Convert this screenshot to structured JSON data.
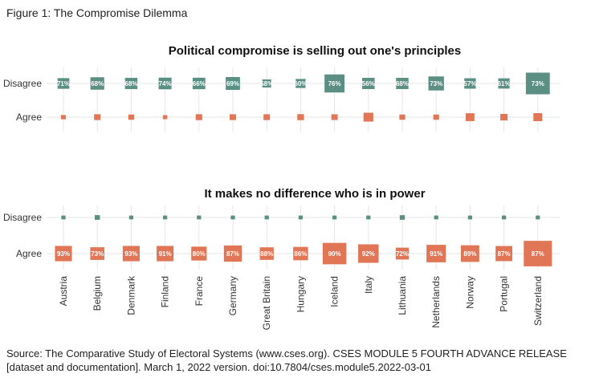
{
  "figure_caption": "Figure 1: The Compromise Dilemma",
  "source_note": "Source: The Comparative Study of Electoral Systems (www.cses.org). CSES MODULE 5 FOURTH ADVANCE RELEASE [dataset and documentation]. March 1, 2022 version. doi:10.7804/cses.module5.2022-03-01",
  "colors": {
    "disagree": "#5b8f84",
    "agree": "#e07656",
    "grid": "#e6e6e6",
    "label_text": "#ffffff"
  },
  "chart_data": [
    {
      "type": "heatmap",
      "title": "Political compromise is selling out one's principles",
      "rows": [
        "Disagree",
        "Agree"
      ],
      "categories": [
        "Austria",
        "Belgium",
        "Denmark",
        "Finland",
        "France",
        "Germany",
        "Great Britain",
        "Hungary",
        "Iceland",
        "Italy",
        "Lithuania",
        "Netherlands",
        "Norway",
        "Portugal",
        "Switzerland"
      ],
      "labeled_row": "Disagree",
      "labels": [
        "71%",
        "68%",
        "68%",
        "74%",
        "66%",
        "69%",
        "58%",
        "60%",
        "76%",
        "56%",
        "68%",
        "73%",
        "57%",
        "61%",
        "73%"
      ],
      "series": [
        {
          "name": "Disagree",
          "values": [
            71,
            68,
            68,
            74,
            66,
            69,
            58,
            60,
            76,
            56,
            68,
            73,
            57,
            61,
            73
          ]
        },
        {
          "name": "Agree",
          "values": [
            29,
            32,
            32,
            26,
            34,
            31,
            42,
            40,
            24,
            44,
            32,
            27,
            43,
            39,
            27
          ]
        }
      ],
      "sample_scale": [
        0.82,
        1.0,
        0.9,
        0.86,
        0.95,
        1.02,
        0.76,
        0.82,
        1.3,
        1.1,
        0.9,
        1.05,
        1.0,
        0.92,
        1.62
      ]
    },
    {
      "type": "heatmap",
      "title": "It makes no difference who is in power",
      "rows": [
        "Disagree",
        "Agree"
      ],
      "categories": [
        "Austria",
        "Belgium",
        "Denmark",
        "Finland",
        "France",
        "Germany",
        "Great Britain",
        "Hungary",
        "Iceland",
        "Italy",
        "Lithuania",
        "Netherlands",
        "Norway",
        "Portugal",
        "Switzerland"
      ],
      "labeled_row": "Agree",
      "labels": [
        "93%",
        "73%",
        "93%",
        "91%",
        "80%",
        "87%",
        "88%",
        "86%",
        "90%",
        "92%",
        "72%",
        "91%",
        "89%",
        "87%",
        "87%"
      ],
      "series": [
        {
          "name": "Disagree",
          "values": [
            7,
            27,
            7,
            9,
            20,
            13,
            12,
            14,
            10,
            8,
            28,
            9,
            11,
            13,
            13
          ]
        },
        {
          "name": "Agree",
          "values": [
            93,
            73,
            93,
            91,
            80,
            87,
            88,
            86,
            90,
            92,
            72,
            91,
            89,
            87,
            87
          ]
        }
      ],
      "sample_scale": [
        0.9,
        0.95,
        0.9,
        0.92,
        0.95,
        1.02,
        0.78,
        0.85,
        1.3,
        1.1,
        0.9,
        1.05,
        1.02,
        0.95,
        1.6
      ]
    }
  ]
}
